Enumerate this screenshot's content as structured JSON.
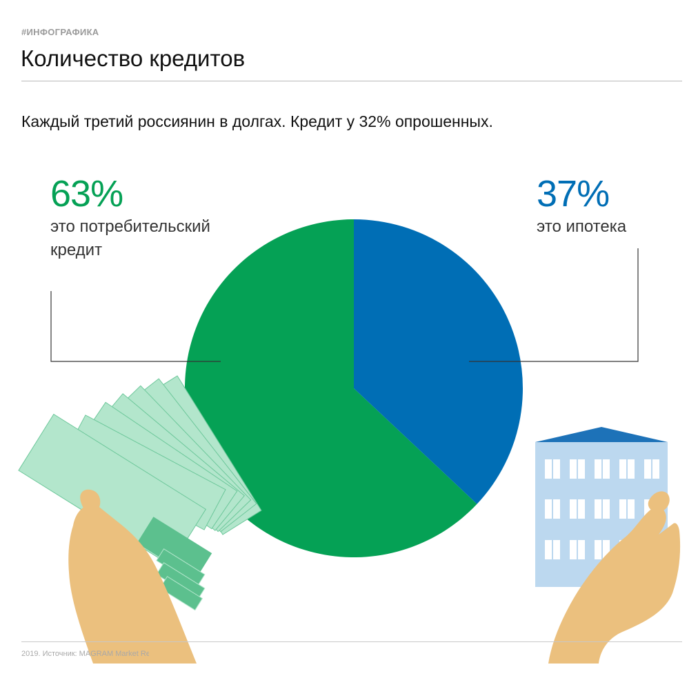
{
  "header": {
    "tag": "#ИНФОГРАФИКА",
    "title": "Количество кредитов",
    "subtitle": "Каждый третий россиянин в долгах. Кредит у 32% опрошенных."
  },
  "chart_data": {
    "type": "pie",
    "title": "Количество кредитов",
    "series": [
      {
        "name": "потребительский кредит",
        "value": 63,
        "label": "63%",
        "description": "это потребительский кредит",
        "color": "#05a155"
      },
      {
        "name": "ипотека",
        "value": 37,
        "label": "37%",
        "description": "это ипотека",
        "color": "#006eb5"
      }
    ]
  },
  "footer": {
    "source": "2019. Источник: MAGRAM Market Research"
  },
  "colors": {
    "green": "#05a155",
    "blue": "#006eb5",
    "money_light": "#b3e6cc",
    "money_dark": "#5cc08e",
    "building": "#bcd8ef",
    "building_roof": "#1d72b8",
    "skin": "#ebc07e"
  }
}
